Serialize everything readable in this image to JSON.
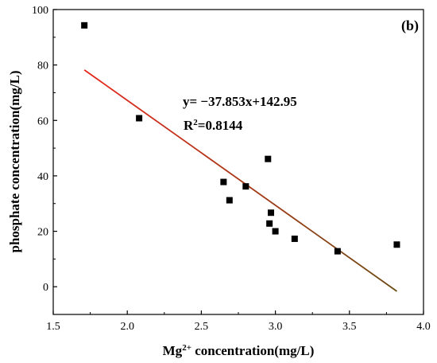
{
  "chart_data": {
    "type": "scatter",
    "title": "",
    "panel_label": "(b)",
    "xlabel": {
      "base": "Mg",
      "sup": "2+",
      "rest": " concentration(mg/L)"
    },
    "ylabel": "phosphate concentration(mg/L)",
    "xlim": [
      1.5,
      4.0
    ],
    "ylim": [
      -10,
      100
    ],
    "xticks": [
      1.5,
      2.0,
      2.5,
      3.0,
      3.5,
      4.0
    ],
    "xtick_labels": [
      "1.5",
      "2.0",
      "2.5",
      "3.0",
      "3.5",
      "4.0"
    ],
    "yticks": [
      0,
      20,
      40,
      60,
      80,
      100
    ],
    "ytick_labels": [
      "0",
      "20",
      "40",
      "60",
      "80",
      "100"
    ],
    "grid": false,
    "points": {
      "x": [
        1.71,
        2.08,
        2.65,
        2.69,
        2.8,
        2.95,
        2.96,
        2.97,
        3.0,
        3.13,
        3.42,
        3.82
      ],
      "y": [
        94.3,
        60.8,
        37.8,
        31.2,
        36.2,
        46.1,
        22.8,
        26.7,
        20.0,
        17.3,
        12.8,
        15.2
      ],
      "color": "#000000"
    },
    "fit_line": {
      "slope": -37.853,
      "intercept": 142.95,
      "x_range": [
        1.71,
        3.82
      ],
      "color_start": "#e8261c",
      "color_end": "#6b4a12"
    },
    "annotations": {
      "equation": "y= −37.853x+142.95",
      "r2_base": "R",
      "r2_sup": "2",
      "r2_rest": "=0.8144"
    }
  }
}
